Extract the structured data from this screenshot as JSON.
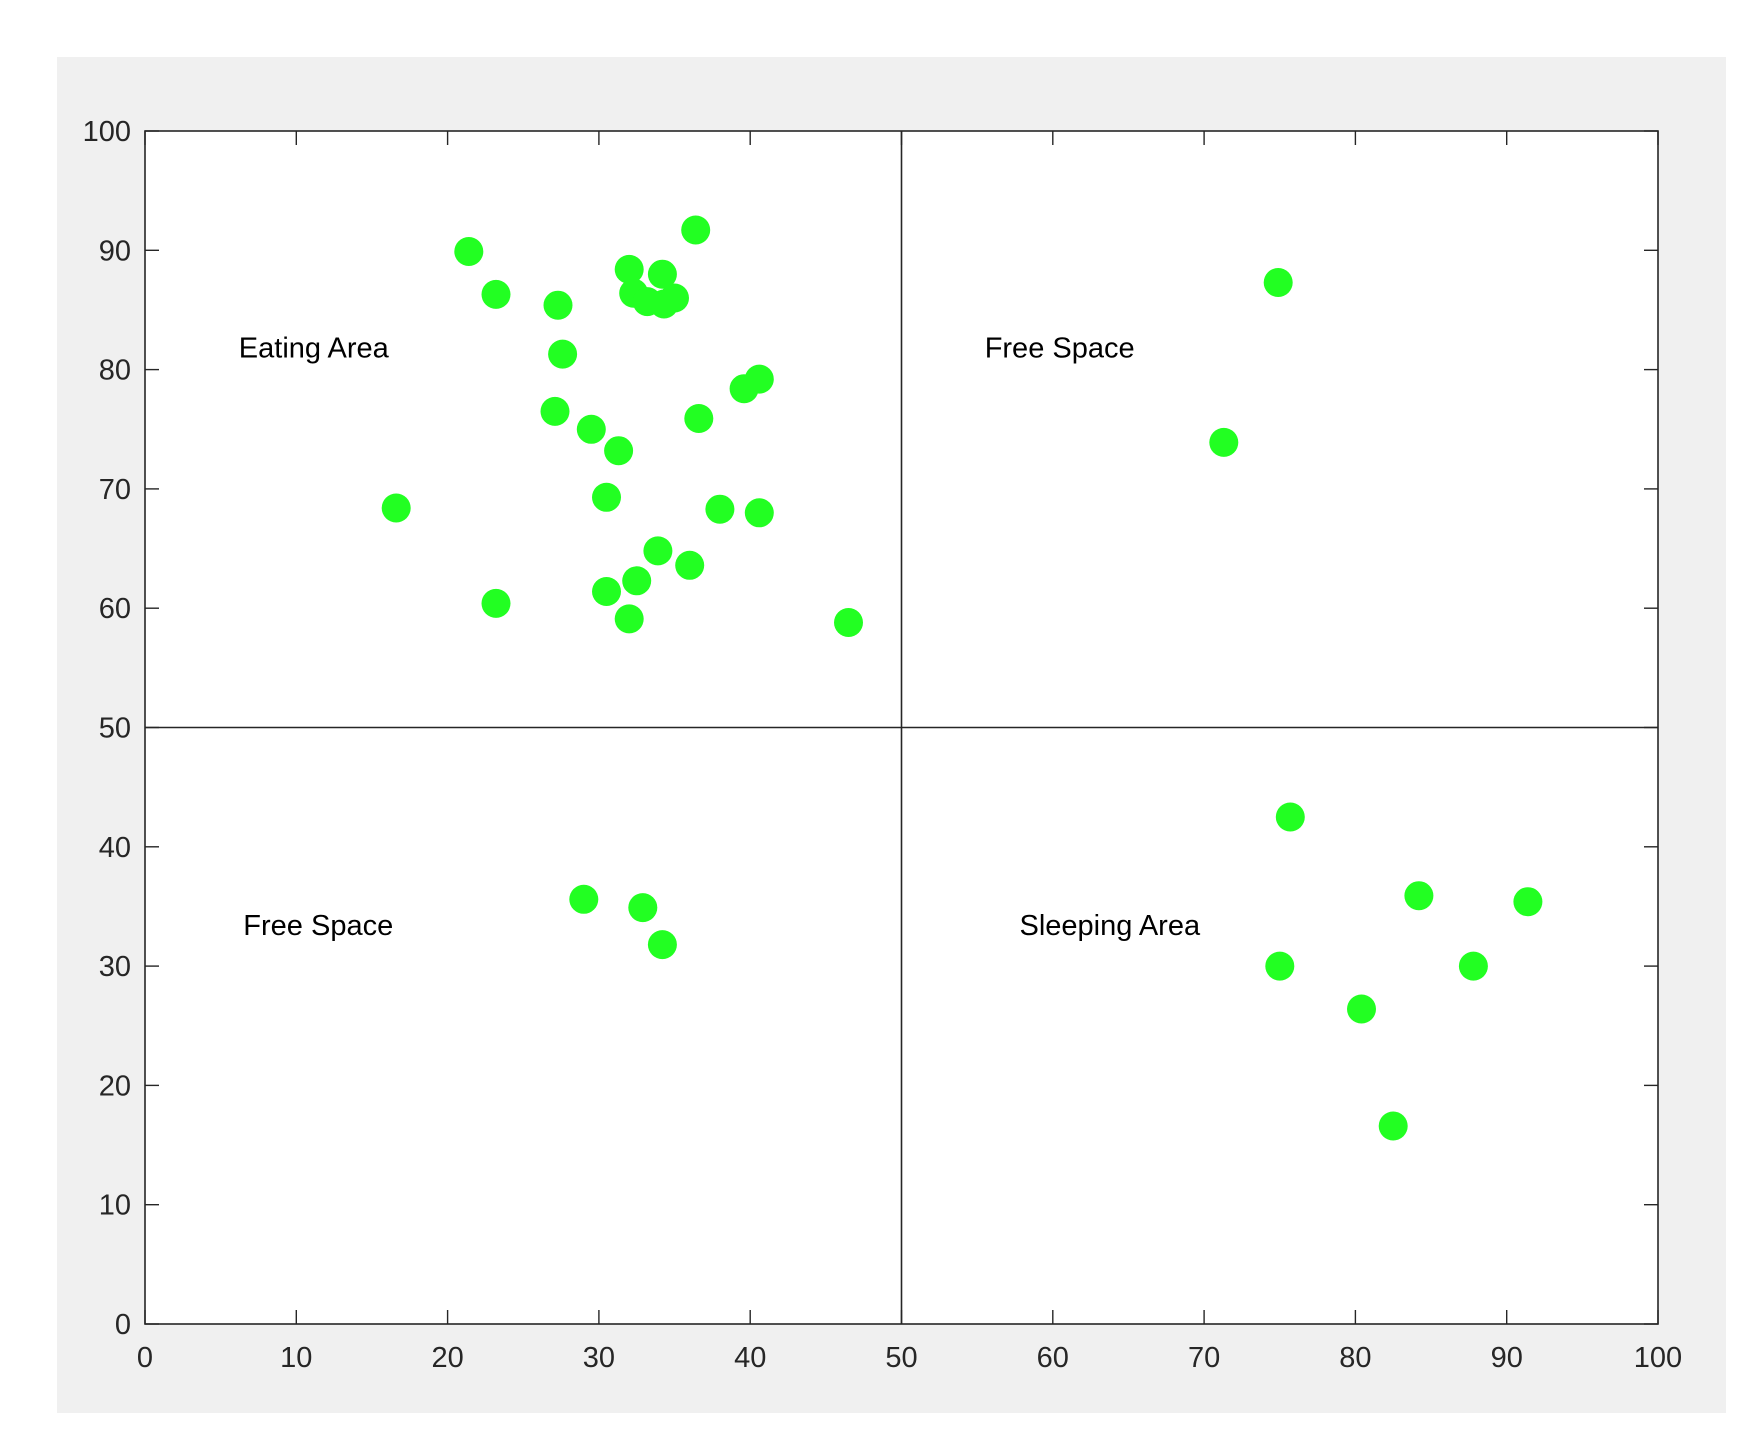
{
  "chart_data": {
    "type": "scatter",
    "title": "",
    "xlabel": "",
    "ylabel": "",
    "xlim": [
      0,
      100
    ],
    "ylim": [
      0,
      100
    ],
    "xticks": [
      0,
      10,
      20,
      30,
      40,
      50,
      60,
      70,
      80,
      90,
      100
    ],
    "yticks": [
      0,
      10,
      20,
      30,
      40,
      50,
      60,
      70,
      80,
      90,
      100
    ],
    "grid": false,
    "divider_lines": {
      "x": 50,
      "y": 50
    },
    "marker_color": "#22ff22",
    "frame_color": "#262626",
    "figure_background": "#f0f0f0",
    "axes_background": "#ffffff",
    "annotations": [
      {
        "text": "Eating Area",
        "x": 6.2,
        "y": 81
      },
      {
        "text": "Free Space",
        "x": 55.5,
        "y": 81
      },
      {
        "text": "Free Space",
        "x": 6.5,
        "y": 32.6
      },
      {
        "text": "Sleeping Area",
        "x": 57.8,
        "y": 32.6
      }
    ],
    "points": [
      [
        21.4,
        89.9
      ],
      [
        23.2,
        86.3
      ],
      [
        27.3,
        85.4
      ],
      [
        27.6,
        81.3
      ],
      [
        32.0,
        88.4
      ],
      [
        32.3,
        86.4
      ],
      [
        33.2,
        85.7
      ],
      [
        34.2,
        88.0
      ],
      [
        34.3,
        85.5
      ],
      [
        35.0,
        86.0
      ],
      [
        36.4,
        91.7
      ],
      [
        39.6,
        78.4
      ],
      [
        40.6,
        79.2
      ],
      [
        27.1,
        76.5
      ],
      [
        29.5,
        75.0
      ],
      [
        31.3,
        73.2
      ],
      [
        36.6,
        75.9
      ],
      [
        16.6,
        68.4
      ],
      [
        30.5,
        69.3
      ],
      [
        38.0,
        68.3
      ],
      [
        40.6,
        68.0
      ],
      [
        33.9,
        64.8
      ],
      [
        36.0,
        63.6
      ],
      [
        32.5,
        62.3
      ],
      [
        30.5,
        61.4
      ],
      [
        23.2,
        60.4
      ],
      [
        32.0,
        59.1
      ],
      [
        46.5,
        58.8
      ],
      [
        74.9,
        87.3
      ],
      [
        71.3,
        73.9
      ],
      [
        29.0,
        35.6
      ],
      [
        32.9,
        34.9
      ],
      [
        34.2,
        31.8
      ],
      [
        75.7,
        42.5
      ],
      [
        84.2,
        35.9
      ],
      [
        91.4,
        35.4
      ],
      [
        75.0,
        30.0
      ],
      [
        87.8,
        30.0
      ],
      [
        80.4,
        26.4
      ],
      [
        82.5,
        16.6
      ]
    ]
  }
}
